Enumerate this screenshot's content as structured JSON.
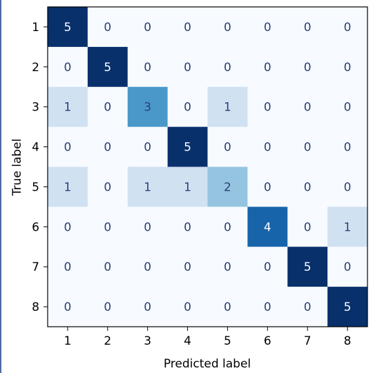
{
  "chart_data": {
    "type": "heatmap",
    "colormap": "Blues",
    "xlabel": "Predicted label",
    "ylabel": "True label",
    "x_categories": [
      "1",
      "2",
      "3",
      "4",
      "5",
      "6",
      "7",
      "8"
    ],
    "y_categories": [
      "1",
      "2",
      "3",
      "4",
      "5",
      "6",
      "7",
      "8"
    ],
    "matrix": [
      [
        5,
        0,
        0,
        0,
        0,
        0,
        0,
        0
      ],
      [
        0,
        5,
        0,
        0,
        0,
        0,
        0,
        0
      ],
      [
        1,
        0,
        3,
        0,
        1,
        0,
        0,
        0
      ],
      [
        0,
        0,
        0,
        5,
        0,
        0,
        0,
        0
      ],
      [
        1,
        0,
        1,
        1,
        2,
        0,
        0,
        0
      ],
      [
        0,
        0,
        0,
        0,
        0,
        4,
        0,
        1
      ],
      [
        0,
        0,
        0,
        0,
        0,
        0,
        5,
        0
      ],
      [
        0,
        0,
        0,
        0,
        0,
        0,
        0,
        5
      ]
    ],
    "value_range": [
      0,
      5
    ],
    "colors": {
      "low": "#f7fbff",
      "high": "#08306b",
      "text_light": "#ffffff",
      "text_dark": "#2c3e7a"
    }
  }
}
